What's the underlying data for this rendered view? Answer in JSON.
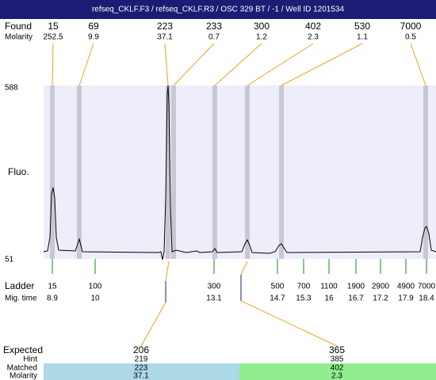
{
  "title": "refseq_CKLF.F3 / refseq_CKLF.R3 / OSC 329 BT / -1 / Well ID 1201534",
  "found": {
    "label": "Found",
    "molarity_label": "Molarity",
    "sizes": [
      15,
      69,
      223,
      233,
      300,
      402,
      530,
      7000
    ],
    "molarities": [
      252.5,
      9.9,
      37.1,
      0.7,
      1.2,
      2.3,
      1.1,
      0.5
    ]
  },
  "fluo": {
    "label": "Fluo.",
    "max": 588,
    "min": 51
  },
  "ladder": {
    "label": "Ladder",
    "time_label": "Mig. time",
    "sizes": [
      15,
      100,
      300,
      500,
      700,
      1100,
      1900,
      2900,
      4900,
      7000
    ],
    "times": [
      8.9,
      10,
      13.1,
      14.7,
      15.3,
      16,
      16.7,
      17.2,
      17.9,
      18.4
    ]
  },
  "expected": {
    "label": "Expected",
    "hint_label": "Hint",
    "matched_label": "Matched",
    "molarity_label": "Molarity",
    "columns": [
      {
        "expected": 206,
        "hint": 219,
        "matched": 223,
        "molarity": 37.1
      },
      {
        "expected": 365,
        "hint": 385,
        "matched": 402,
        "molarity": 2.3
      }
    ]
  }
}
